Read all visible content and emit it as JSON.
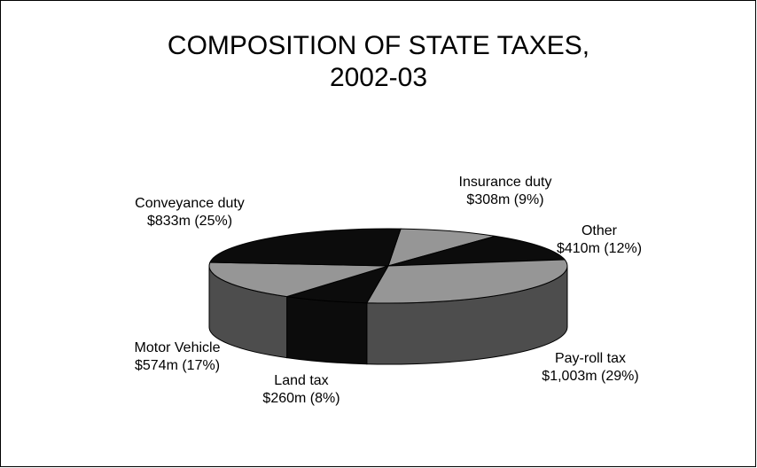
{
  "chart_data": {
    "type": "pie",
    "title_lines": [
      "COMPOSITION OF STATE TAXES,",
      "2002-03"
    ],
    "slices": [
      {
        "label": "Insurance duty",
        "value_label": "$308m (9%)",
        "value": 308,
        "percent": 9,
        "color": "#969696"
      },
      {
        "label": "Other",
        "value_label": "$410m (12%)",
        "value": 410,
        "percent": 12,
        "color": "#0c0c0c"
      },
      {
        "label": "Pay-roll tax",
        "value_label": "$1,003m (29%)",
        "value": 1003,
        "percent": 29,
        "color": "#969696"
      },
      {
        "label": "Land tax",
        "value_label": "$260m (8%)",
        "value": 260,
        "percent": 8,
        "color": "#0c0c0c"
      },
      {
        "label": "Motor Vehicle",
        "value_label": "$574m (17%)",
        "value": 574,
        "percent": 17,
        "color": "#969696"
      },
      {
        "label": "Conveyance duty",
        "value_label": "$833m (25%)",
        "value": 833,
        "percent": 25,
        "color": "#0c0c0c"
      }
    ],
    "side_color": "#4d4d4d",
    "legend": "none"
  }
}
